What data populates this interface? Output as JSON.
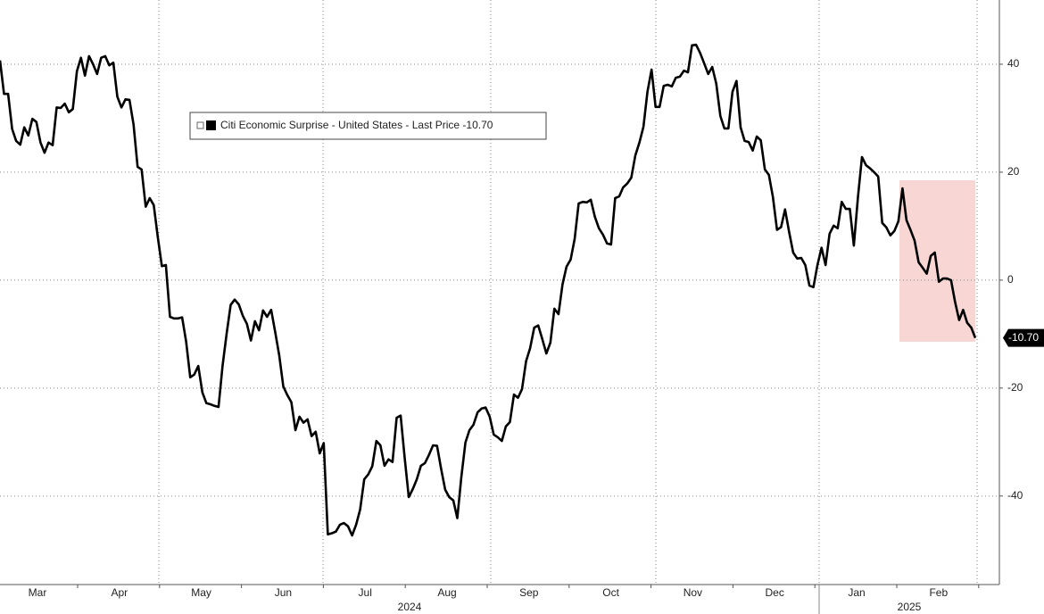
{
  "chart_data": {
    "type": "line",
    "series": [
      {
        "name": "Citi Economic Surprise - United States - Last Price -10.70",
        "color": "#000000",
        "values": [
          40.7,
          34.5,
          34.5,
          28,
          25.8,
          25.1,
          28.3,
          26.8,
          29.9,
          29.3,
          25.5,
          23.6,
          25.5,
          25,
          32,
          31.9,
          32.7,
          31.1,
          31.7,
          38.7,
          41.2,
          37.9,
          41.5,
          40,
          38.2,
          41.2,
          41.5,
          39.8,
          40.3,
          34,
          32,
          33.5,
          33.4,
          28.8,
          21,
          20.5,
          13.6,
          15.2,
          13.9,
          7.9,
          2.6,
          2.8,
          -6.8,
          -7.1,
          -7.1,
          -6.9,
          -11.4,
          -18,
          -17.5,
          -15.9,
          -20.8,
          -22.8,
          -23,
          -23.3,
          -23.5,
          -15.9,
          -9.9,
          -4.6,
          -3.6,
          -4.5,
          -6.6,
          -8.1,
          -11.2,
          -7.6,
          -9.3,
          -5.6,
          -6.8,
          -5.5,
          -9.6,
          -13.9,
          -19.7,
          -21.3,
          -22.6,
          -27.8,
          -25.3,
          -26.4,
          -25.8,
          -28.9,
          -28.1,
          -32.1,
          -30.2,
          -47.1,
          -46.9,
          -46.6,
          -45.3,
          -45,
          -45.6,
          -47.3,
          -45.3,
          -42.5,
          -36.9,
          -36,
          -34.5,
          -29.8,
          -30.6,
          -34.4,
          -33.2,
          -33.7,
          -25.5,
          -25.1,
          -32.9,
          -40.2,
          -38.7,
          -36.9,
          -34.4,
          -33.9,
          -32.4,
          -30.6,
          -30.7,
          -34.9,
          -38.8,
          -40.2,
          -40.8,
          -44.1,
          -36.5,
          -30.1,
          -27.8,
          -26.8,
          -24.5,
          -23.8,
          -23.6,
          -25.3,
          -28.6,
          -29.1,
          -29.8,
          -27.1,
          -26.3,
          -21.2,
          -21.8,
          -20.2,
          -15,
          -12.6,
          -8.8,
          -8.4,
          -10.9,
          -13.6,
          -11.6,
          -5.3,
          -6.3,
          -0.8,
          2.5,
          3.8,
          7.6,
          14.2,
          14.5,
          14.4,
          14.9,
          11.7,
          9.6,
          8.4,
          6.8,
          6.6,
          15.2,
          15.5,
          17.2,
          17.9,
          19,
          23.1,
          25.5,
          28.4,
          34.9,
          39,
          32.1,
          32.1,
          36,
          36.2,
          35.9,
          37.5,
          37.7,
          38.8,
          38.5,
          43.5,
          43.6,
          42.1,
          40.2,
          38.2,
          39.5,
          36.4,
          30.4,
          28.1,
          28.1,
          34.9,
          36.9,
          28.3,
          25.8,
          25.6,
          24,
          26.6,
          25.9,
          20.5,
          19.5,
          15.4,
          9.3,
          9.8,
          13.1,
          8.9,
          5.1,
          4,
          4.1,
          2.8,
          -1,
          -1.3,
          2.8,
          6,
          2.8,
          8.6,
          10.1,
          9.6,
          14.5,
          13.2,
          13.2,
          6.4,
          15.4,
          22.8,
          21.3,
          20.7,
          20,
          19.2,
          10.6,
          9.8,
          8.3,
          9.1,
          10.9,
          17,
          11.1,
          9.3,
          7.3,
          3.3,
          2.3,
          1.2,
          4.5,
          5.1,
          -0.3,
          0.3,
          0.3,
          0,
          -4,
          -7.4,
          -5.5,
          -7.9,
          -8.8,
          -10.7
        ]
      }
    ],
    "months": [
      "Mar",
      "Apr",
      "May",
      "Jun",
      "Jul",
      "Aug",
      "Sep",
      "Oct",
      "Nov",
      "Dec",
      "Jan",
      "Feb"
    ],
    "years": [
      "2024",
      "2025"
    ],
    "ylim": [
      -56.4,
      51.9
    ],
    "yticks": [
      -40,
      -20,
      0,
      20,
      40
    ],
    "grid": true,
    "last_price": {
      "label": "-10.70",
      "value": -10.7
    }
  }
}
